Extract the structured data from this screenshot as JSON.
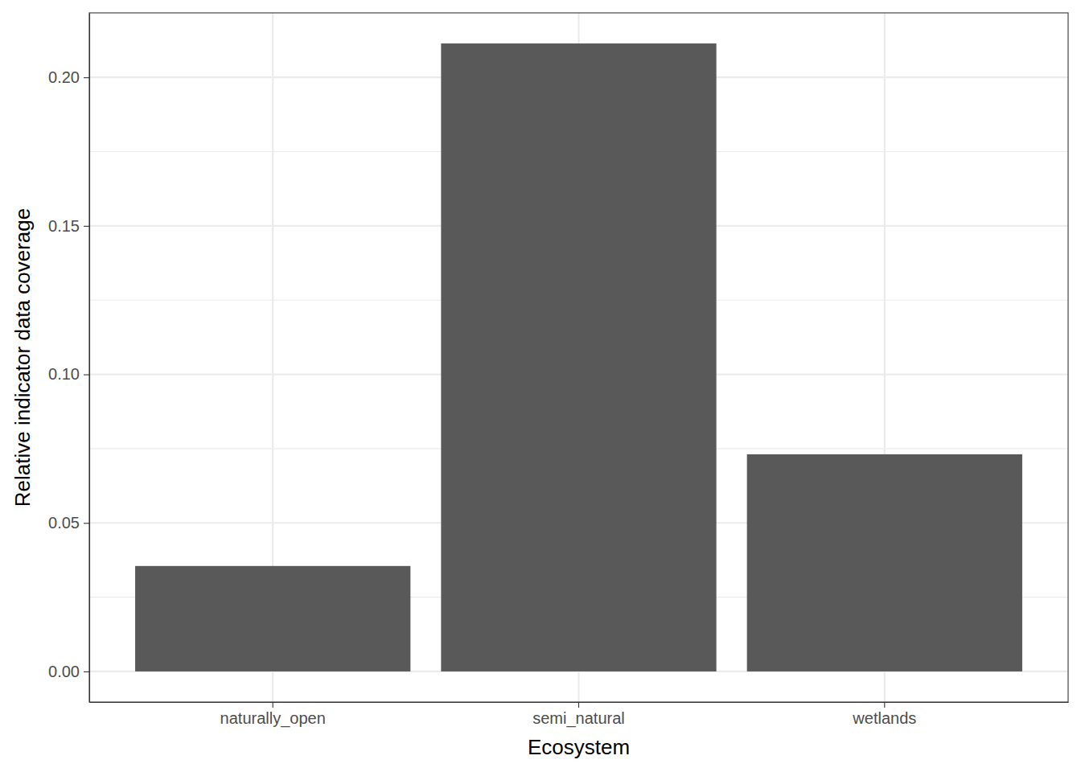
{
  "chart_data": {
    "type": "bar",
    "x_label": "Ecosystem",
    "y_label": "Relative indicator data coverage",
    "categories": [
      "naturally_open",
      "semi_natural",
      "wetlands"
    ],
    "values": [
      0.0355,
      0.2114,
      0.0731
    ],
    "color": "#595959",
    "ylim": [
      -0.0103,
      0.2217
    ],
    "yticks": [
      {
        "value": 0,
        "label": "0.00"
      },
      {
        "value": 0.05,
        "label": "0.05"
      },
      {
        "value": 0.1,
        "label": "0.10"
      },
      {
        "value": 0.15,
        "label": "0.15"
      },
      {
        "value": 0.2,
        "label": "0.20"
      }
    ],
    "grid": true
  }
}
